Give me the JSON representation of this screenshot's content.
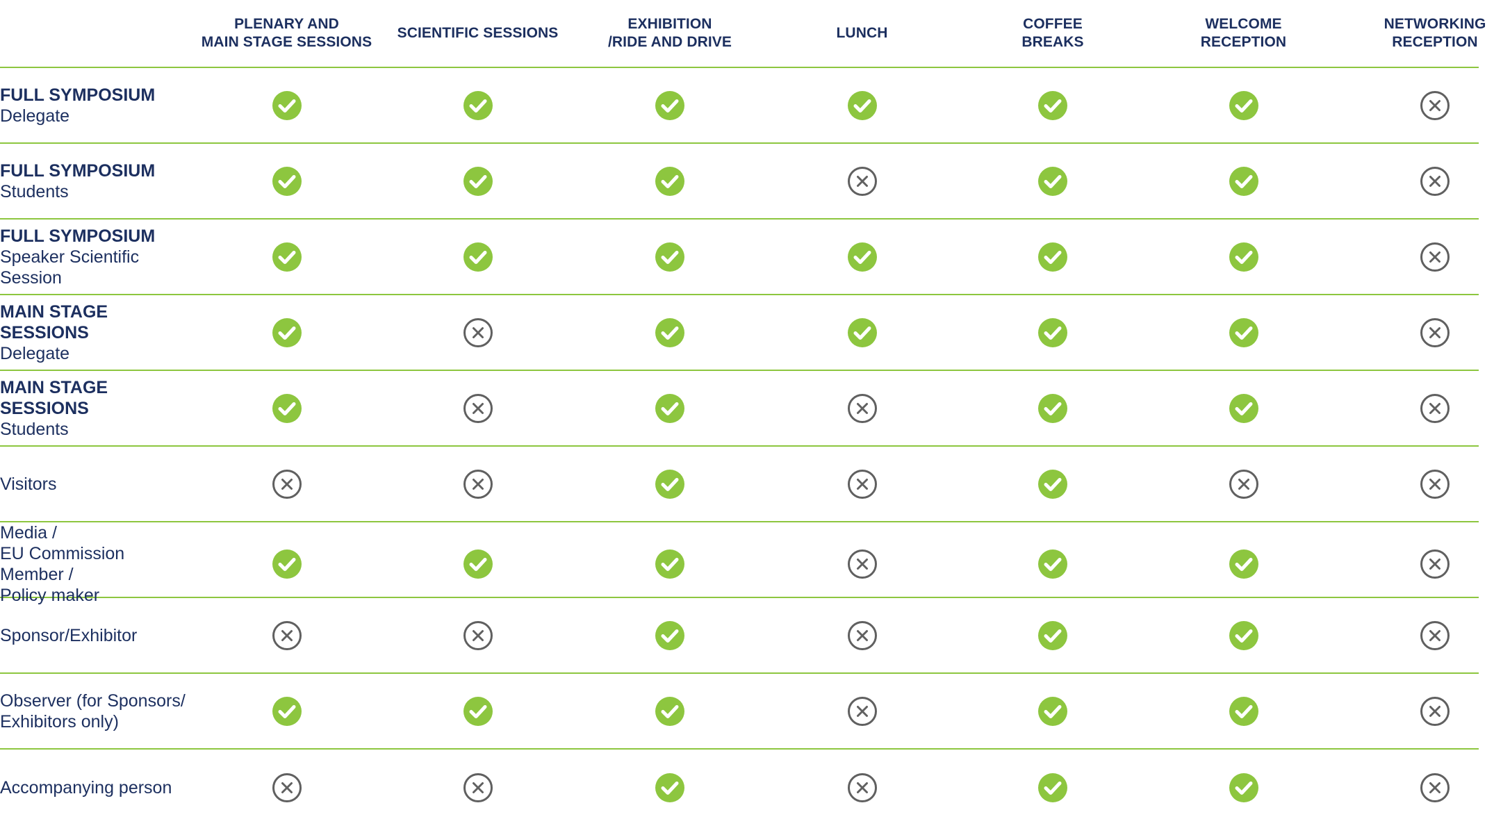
{
  "columns": [
    "PLENARY AND\nMAIN STAGE SESSIONS",
    "SCIENTIFIC SESSIONS",
    "EXHIBITION\n/RIDE AND DRIVE",
    "LUNCH",
    "COFFEE\nBREAKS",
    "WELCOME\nRECEPTION",
    "NETWORKING\nRECEPTION"
  ],
  "colors": {
    "text": "#1c2f5f",
    "included": "#8dc63f",
    "excluded_stroke": "#606060",
    "rule": "#8dc63f"
  },
  "icons": {
    "yes": "check-circle-icon",
    "no": "x-circle-icon"
  },
  "rows": [
    {
      "title": "FULL SYMPOSIUM",
      "subtitle": "Delegate",
      "access": [
        true,
        true,
        true,
        true,
        true,
        true,
        false
      ]
    },
    {
      "title": "FULL SYMPOSIUM",
      "subtitle": "Students",
      "access": [
        true,
        true,
        true,
        false,
        true,
        true,
        false
      ]
    },
    {
      "title": "FULL SYMPOSIUM",
      "subtitle": "Speaker Scientific Session",
      "access": [
        true,
        true,
        true,
        true,
        true,
        true,
        false
      ]
    },
    {
      "title": "MAIN STAGE SESSIONS",
      "subtitle": "Delegate",
      "access": [
        true,
        false,
        true,
        true,
        true,
        true,
        false
      ]
    },
    {
      "title": "MAIN STAGE SESSIONS",
      "subtitle": "Students",
      "access": [
        true,
        false,
        true,
        false,
        true,
        true,
        false
      ]
    },
    {
      "title": "",
      "subtitle": "Visitors",
      "access": [
        false,
        false,
        true,
        false,
        true,
        false,
        false
      ]
    },
    {
      "title": "",
      "subtitle": "Media /\nEU Commission Member /\nPolicy maker",
      "access": [
        true,
        true,
        true,
        false,
        true,
        true,
        false
      ]
    },
    {
      "title": "",
      "subtitle": "Sponsor/Exhibitor",
      "access": [
        false,
        false,
        true,
        false,
        true,
        true,
        false
      ]
    },
    {
      "title": "",
      "subtitle": "Observer (for Sponsors/\nExhibitors only)",
      "access": [
        true,
        true,
        true,
        false,
        true,
        true,
        false
      ]
    },
    {
      "title": "",
      "subtitle": "Accompanying person",
      "access": [
        false,
        false,
        true,
        false,
        true,
        true,
        false
      ]
    }
  ]
}
